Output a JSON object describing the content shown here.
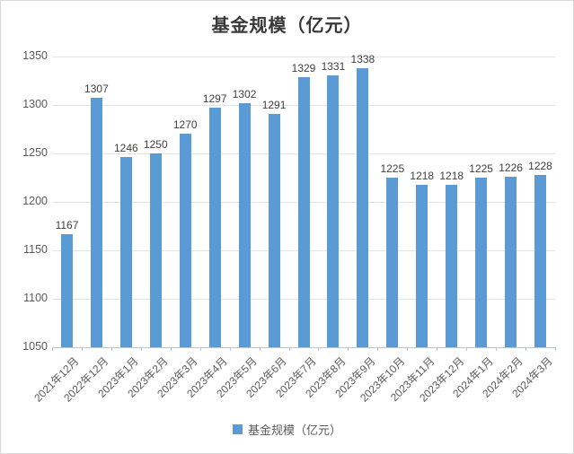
{
  "chart_data": {
    "type": "bar",
    "title": "基金规模（亿元）",
    "categories": [
      "2021年12月",
      "2022年12月",
      "2023年1月",
      "2023年2月",
      "2023年3月",
      "2023年4月",
      "2023年5月",
      "2023年6月",
      "2023年7月",
      "2023年8月",
      "2023年9月",
      "2023年10月",
      "2023年11月",
      "2023年12月",
      "2024年1月",
      "2024年2月",
      "2024年3月"
    ],
    "values": [
      1167,
      1307,
      1246,
      1250,
      1270,
      1297,
      1302,
      1291,
      1329,
      1331,
      1338,
      1225,
      1218,
      1218,
      1225,
      1226,
      1228
    ],
    "xlabel": "",
    "ylabel": "",
    "ylim": [
      1050,
      1350
    ],
    "yticks": [
      1050,
      1100,
      1150,
      1200,
      1250,
      1300,
      1350
    ],
    "grid": true,
    "data_labels": true,
    "legend_position": "bottom",
    "legend_entries": [
      "基金规模（亿元）"
    ],
    "bar_color": "#5B9BD5"
  },
  "legend": {
    "label": "基金规模（亿元）"
  },
  "colors": {
    "bar": "#5B9BD5",
    "gridline": "#e4e4e4",
    "axis": "#bcc3cb",
    "title_text": "#383838",
    "tick_text": "#595959",
    "value_label_text": "#404040",
    "border": "#d9d9d9"
  }
}
